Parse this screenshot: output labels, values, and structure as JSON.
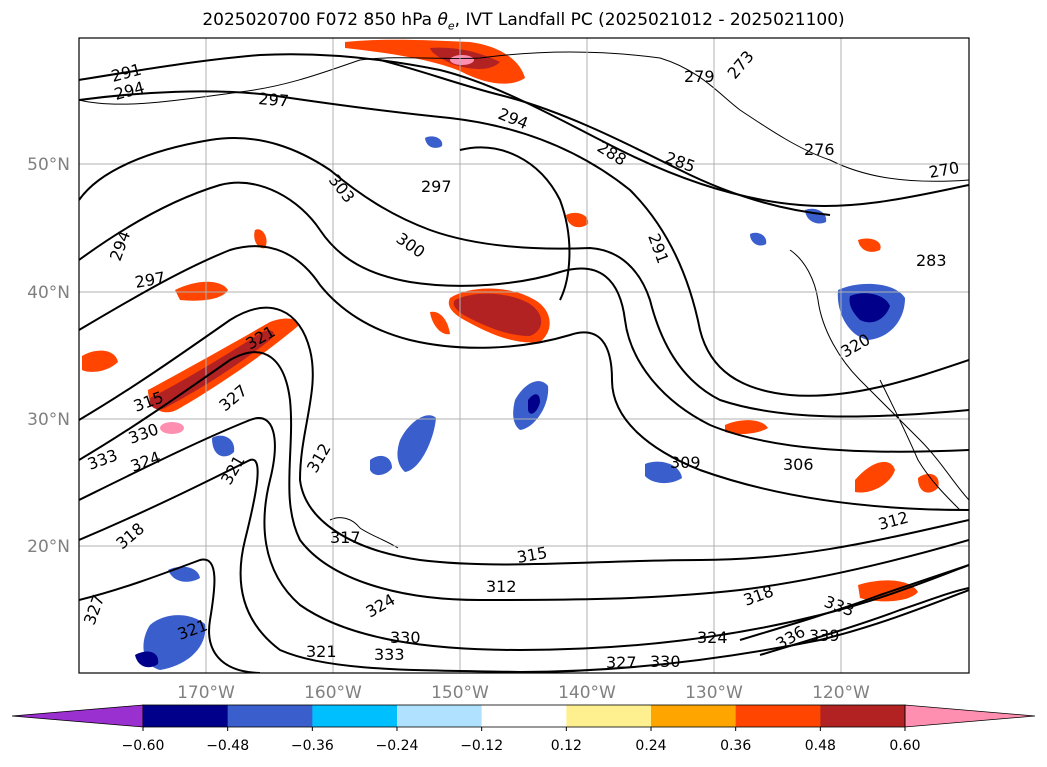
{
  "title_prefix": "2025020700 F072 850 hPa ",
  "title_symbol": "θ",
  "title_symbol_sub": "e",
  "title_suffix": ", IVT Landfall PC (2025021012 - 2025021100)",
  "lat_labels": [
    "50°N",
    "40°N",
    "30°N",
    "20°N"
  ],
  "lon_labels": [
    "170°W",
    "160°W",
    "150°W",
    "140°W",
    "130°W",
    "120°W"
  ],
  "colorbar": {
    "tick_labels": [
      "−0.60",
      "−0.48",
      "−0.36",
      "−0.24",
      "−0.12",
      "0.12",
      "0.24",
      "0.36",
      "0.48",
      "0.60"
    ],
    "colors": [
      "#9b30d0",
      "#00008b",
      "#3a5fcd",
      "#00bfff",
      "#b0e2ff",
      "#ffffff",
      "#fff08f",
      "#ffa500",
      "#ff4500",
      "#b22222",
      "#ff8fb0"
    ]
  },
  "contour_labels": [
    "291",
    "294",
    "297",
    "294",
    "288",
    "285",
    "279",
    "273",
    "276",
    "270",
    "303",
    "297",
    "300",
    "294",
    "297",
    "291",
    "283",
    "321",
    "327",
    "315",
    "333",
    "330",
    "324",
    "321",
    "312",
    "309",
    "306",
    "317",
    "318",
    "315",
    "312",
    "324",
    "330",
    "321",
    "333",
    "327",
    "330",
    "324",
    "333",
    "336",
    "339",
    "321",
    "327",
    "318",
    "312",
    "320"
  ],
  "map_features": {
    "contour_color": "#000000",
    "grid_color": "#b0b0b0",
    "coastline_color": "#000000"
  }
}
